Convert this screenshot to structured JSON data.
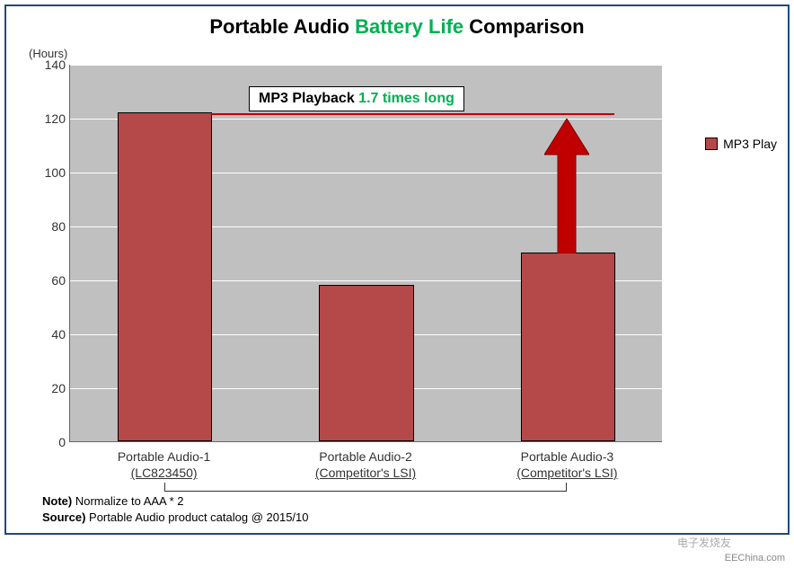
{
  "chart": {
    "type": "bar",
    "title_parts": {
      "p1": "Portable Audio ",
      "p2": "Battery Life",
      "p3": " Comparison"
    },
    "title_fontsize": 22,
    "ylabel": "(Hours)",
    "ylim": [
      0,
      140
    ],
    "ytick_step": 20,
    "yticks": [
      0,
      20,
      40,
      60,
      80,
      100,
      120,
      140
    ],
    "plot_background": "#c0c0c0",
    "grid_color": "#ffffff",
    "frame_border_color": "#1f497d",
    "categories": [
      {
        "line1": "Portable Audio-1",
        "line2": "(LC823450)"
      },
      {
        "line1": "Portable Audio-2",
        "line2": "(Competitor's LSI)"
      },
      {
        "line1": "Portable Audio-3",
        "line2": "(Competitor's LSI)"
      }
    ],
    "values": [
      122,
      58,
      70
    ],
    "bar_color": "#b54848",
    "bar_border": "#000000",
    "bar_width_pct": 16,
    "bar_positions_pct": [
      8,
      42,
      76
    ],
    "legend": {
      "label": "MP3 Play",
      "swatch_color": "#b54848"
    },
    "callout": {
      "prefix": "MP3 Playback ",
      "highlight": "1.7 times long",
      "box_bg": "#ffffff",
      "box_border": "#000000",
      "highlight_color": "#00b050"
    },
    "ref_line": {
      "y_value": 122,
      "color": "#c00000"
    },
    "arrow": {
      "color": "#c00000",
      "from_y": 70,
      "to_y": 120
    },
    "notes": {
      "note_label": "Note)",
      "note_text": "  Normalize to AAA * 2",
      "source_label": "Source)",
      "source_text": "  Portable Audio product catalog @ 2015/10"
    },
    "watermark": "EEChina.com",
    "logo_text": "电子发烧友"
  }
}
